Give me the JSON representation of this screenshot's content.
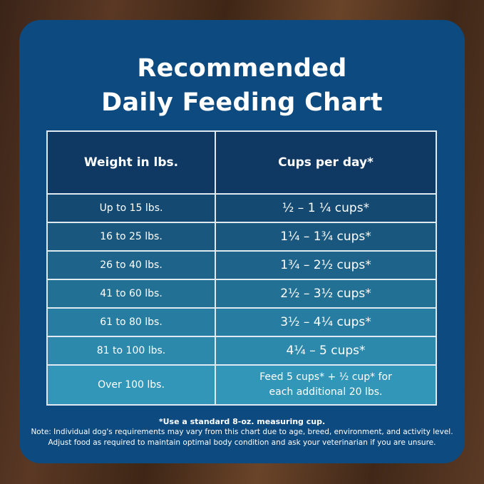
{
  "title": {
    "line1": "Recommended",
    "line2": "Daily Feeding Chart"
  },
  "table": {
    "headers": [
      "Weight in lbs.",
      "Cups per day*"
    ],
    "rows": [
      {
        "weight": "Up to 15 lbs.",
        "cups": "½ – 1 ¼ cups*"
      },
      {
        "weight": "16 to 25 lbs.",
        "cups": "1¼ – 1¾  cups*"
      },
      {
        "weight": "26 to 40 lbs.",
        "cups": "1¾ – 2½ cups*"
      },
      {
        "weight": "41 to 60 lbs.",
        "cups": "2½ – 3½ cups*"
      },
      {
        "weight": "61 to 80 lbs.",
        "cups": "3½ – 4¼ cups*"
      },
      {
        "weight": "81 to 100 lbs.",
        "cups": "4¼ – 5 cups*"
      },
      {
        "weight": "Over 100 lbs.",
        "cups": "Feed 5 cups* + ½ cup* for",
        "cups2": "each additional 20 lbs."
      }
    ]
  },
  "notes": {
    "footnote": "*Use a standard 8-oz. measuring cup.",
    "line1": "Note: Individual dog's requirements may vary from this chart due to age, breed, environment, and activity level.",
    "line2": "Adjust food as required to maintain optimal body condition and ask your veterinarian if you are unsure."
  },
  "colors": {
    "panel": "#0c4a80",
    "header": "#0f3962",
    "row_start": "#144a72",
    "row_end": "#3196b8"
  }
}
